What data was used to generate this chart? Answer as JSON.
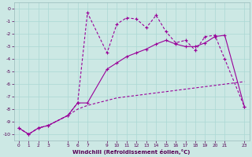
{
  "xlabel": "Windchill (Refroidissement éolien,°C)",
  "background_color": "#cce8e4",
  "grid_color": "#aad8d4",
  "line_color": "#990099",
  "line1_x": [
    0,
    1,
    2,
    3,
    5,
    6,
    7,
    9,
    10,
    11,
    12,
    13,
    14,
    15,
    16,
    17,
    18,
    19,
    20,
    21,
    23
  ],
  "line1_y": [
    -9.5,
    -10.0,
    -9.5,
    -9.3,
    -8.5,
    -7.5,
    -0.3,
    -3.5,
    -1.2,
    -0.7,
    -0.8,
    -1.5,
    -0.5,
    -1.8,
    -2.7,
    -2.5,
    -3.3,
    -2.2,
    -2.1,
    -4.0,
    -7.8
  ],
  "line2_x": [
    0,
    1,
    2,
    3,
    5,
    6,
    7,
    9,
    10,
    11,
    12,
    13,
    14,
    15,
    16,
    17,
    18,
    19,
    20,
    21,
    23
  ],
  "line2_y": [
    -9.5,
    -10.0,
    -9.5,
    -9.3,
    -8.5,
    -7.5,
    -7.5,
    -4.8,
    -4.3,
    -3.8,
    -3.5,
    -3.2,
    -2.8,
    -2.5,
    -2.8,
    -3.0,
    -3.0,
    -2.7,
    -2.2,
    -2.1,
    -7.8
  ],
  "line3_x": [
    0,
    1,
    2,
    3,
    5,
    6,
    7,
    9,
    10,
    11,
    12,
    13,
    14,
    15,
    16,
    17,
    18,
    19,
    20,
    21,
    23
  ],
  "line3_y": [
    -9.5,
    -10.0,
    -9.5,
    -9.3,
    -8.5,
    -8.0,
    -7.7,
    -7.3,
    -7.1,
    -7.0,
    -6.9,
    -6.8,
    -6.7,
    -6.6,
    -6.5,
    -6.4,
    -6.3,
    -6.2,
    -6.1,
    -6.0,
    -5.8
  ],
  "xlim": [
    -0.5,
    23.5
  ],
  "ylim": [
    -10.5,
    0.5
  ],
  "yticks": [
    0,
    -1,
    -2,
    -3,
    -4,
    -5,
    -6,
    -7,
    -8,
    -9,
    -10
  ],
  "xticks": [
    0,
    1,
    2,
    3,
    5,
    6,
    7,
    9,
    10,
    11,
    12,
    13,
    14,
    15,
    16,
    17,
    18,
    19,
    20,
    21,
    23
  ]
}
